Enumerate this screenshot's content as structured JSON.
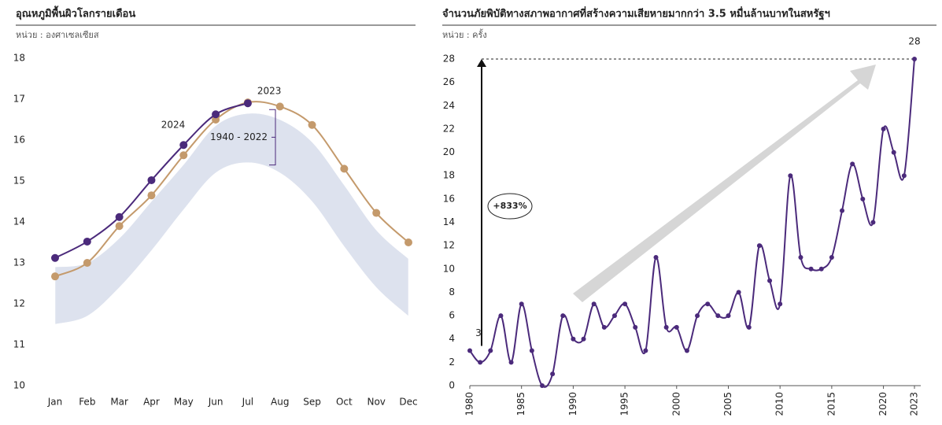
{
  "chart_data": [
    {
      "type": "line",
      "title": "อุณหภูมิพื้นผิวโลกรายเดือน",
      "subtitle": "หน่วย : องศาเซลเซียส",
      "categories": [
        "Jan",
        "Feb",
        "Mar",
        "Apr",
        "May",
        "Jun",
        "Jul",
        "Aug",
        "Sep",
        "Oct",
        "Nov",
        "Dec"
      ],
      "ylim": [
        10,
        18
      ],
      "yticks": [
        10,
        11,
        12,
        13,
        14,
        15,
        16,
        17,
        18
      ],
      "band": {
        "name": "1940 - 2022",
        "color": "#dde2ee",
        "low": [
          11.5,
          11.7,
          12.4,
          13.3,
          14.3,
          15.2,
          15.45,
          15.2,
          14.5,
          13.4,
          12.4,
          11.7
        ],
        "high": [
          12.9,
          13.0,
          13.6,
          14.5,
          15.4,
          16.35,
          16.65,
          16.5,
          15.95,
          14.9,
          13.8,
          13.1
        ]
      },
      "series": [
        {
          "name": "2023",
          "color": "#c49a6c",
          "values": [
            12.67,
            13.0,
            13.9,
            14.65,
            15.63,
            16.5,
            16.92,
            16.82,
            16.37,
            15.3,
            14.22,
            13.5
          ]
        },
        {
          "name": "2024",
          "color": "#4b2a7b",
          "values": [
            13.12,
            13.52,
            14.12,
            15.02,
            15.88,
            16.63,
            16.9,
            null,
            null,
            null,
            null,
            null
          ]
        }
      ]
    },
    {
      "type": "line",
      "title": "จำนวนภัยพิบัติทางสภาพอากาศที่สร้างความเสียหายมากกว่า  3.5 หมื่นล้านบาทในสหรัฐฯ",
      "subtitle": "หน่วย : ครั้ง",
      "annotation": "+833%",
      "x": [
        1980,
        1981,
        1982,
        1983,
        1984,
        1985,
        1986,
        1987,
        1988,
        1989,
        1990,
        1991,
        1992,
        1993,
        1994,
        1995,
        1996,
        1997,
        1998,
        1999,
        2000,
        2001,
        2002,
        2003,
        2004,
        2005,
        2006,
        2007,
        2008,
        2009,
        2010,
        2011,
        2012,
        2013,
        2014,
        2015,
        2016,
        2017,
        2018,
        2019,
        2020,
        2021,
        2022,
        2023
      ],
      "values": [
        3,
        2,
        3,
        6,
        2,
        7,
        3,
        0,
        1,
        6,
        4,
        4,
        7,
        5,
        6,
        7,
        5,
        3,
        11,
        5,
        5,
        3,
        6,
        7,
        6,
        6,
        8,
        5,
        12,
        9,
        7,
        18,
        11,
        10,
        10,
        11,
        15,
        19,
        16,
        14,
        22,
        20,
        18,
        28
      ],
      "color": "#4b2a7b",
      "xlim": [
        1980,
        2023
      ],
      "xticks": [
        1980,
        1985,
        1990,
        1995,
        2000,
        2005,
        2010,
        2015,
        2020,
        2023
      ],
      "ylim": [
        0,
        28
      ],
      "yticks": [
        0,
        2,
        4,
        6,
        8,
        10,
        12,
        14,
        16,
        18,
        20,
        22,
        24,
        26,
        28
      ]
    }
  ]
}
